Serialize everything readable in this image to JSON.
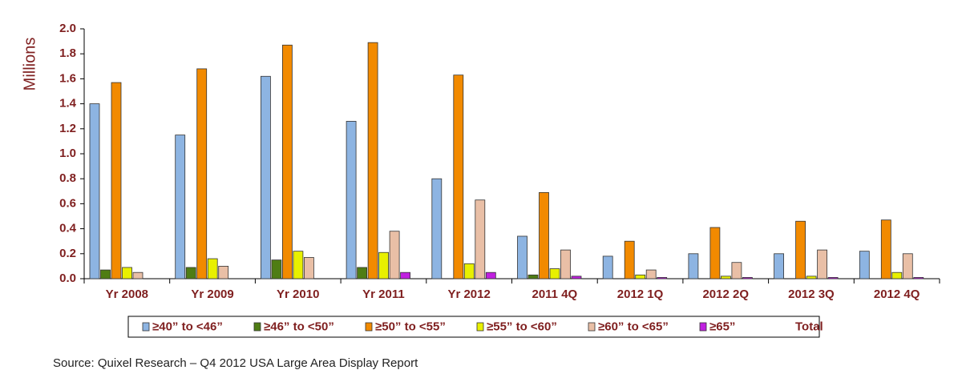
{
  "chart_data": {
    "type": "bar",
    "ylabel": "Millions",
    "source": "Source: Quixel Research – Q4 2012 USA Large Area Display Report",
    "categories": [
      "Yr 2008",
      "Yr 2009",
      "Yr 2010",
      "Yr 2011",
      "Yr 2012",
      "2011 4Q",
      "2012 1Q",
      "2012 2Q",
      "2012 3Q",
      "2012 4Q"
    ],
    "series": [
      {
        "name": "≥40” to <46”",
        "color": "#8db4e2",
        "values": [
          1.4,
          1.15,
          1.62,
          1.26,
          0.8,
          0.34,
          0.18,
          0.2,
          0.2,
          0.22
        ]
      },
      {
        "name": "≥46” to <50”",
        "color": "#4f7d14",
        "values": [
          0.07,
          0.09,
          0.15,
          0.09,
          0.0,
          0.03,
          0.0,
          0.0,
          0.0,
          0.0
        ]
      },
      {
        "name": "≥50” to <55”",
        "color": "#f28a00",
        "values": [
          1.57,
          1.68,
          1.87,
          1.89,
          1.63,
          0.69,
          0.3,
          0.41,
          0.46,
          0.47
        ]
      },
      {
        "name": "≥55” to <60”",
        "color": "#e8f000",
        "values": [
          0.09,
          0.16,
          0.22,
          0.21,
          0.12,
          0.08,
          0.03,
          0.02,
          0.02,
          0.05
        ]
      },
      {
        "name": "≥60” to <65”",
        "color": "#e9bfa6",
        "values": [
          0.05,
          0.1,
          0.17,
          0.38,
          0.63,
          0.23,
          0.07,
          0.13,
          0.23,
          0.2
        ]
      },
      {
        "name": "≥65”",
        "color": "#c020e0",
        "values": [
          0.0,
          0.0,
          0.0,
          0.05,
          0.05,
          0.02,
          0.01,
          0.01,
          0.01,
          0.01
        ]
      },
      {
        "name": "Total",
        "color": null,
        "values": [
          null,
          null,
          null,
          null,
          null,
          null,
          null,
          null,
          null,
          null
        ]
      }
    ],
    "ylim": [
      0,
      2.0
    ],
    "yticks": [
      {
        "value": 0,
        "label": "0.0"
      },
      {
        "value": 0.2,
        "label": "0.2"
      },
      {
        "value": 0.4,
        "label": "0.4"
      },
      {
        "value": 0.6,
        "label": "0.6"
      },
      {
        "value": 0.8,
        "label": "0.8"
      },
      {
        "value": 1.0,
        "label": "1.0"
      },
      {
        "value": 1.2,
        "label": "1.2"
      },
      {
        "value": 1.4,
        "label": "1.4"
      },
      {
        "value": 1.6,
        "label": "1.6"
      },
      {
        "value": 1.8,
        "label": "1.8"
      },
      {
        "value": 2.0,
        "label": "2.0"
      }
    ],
    "grid": false
  }
}
